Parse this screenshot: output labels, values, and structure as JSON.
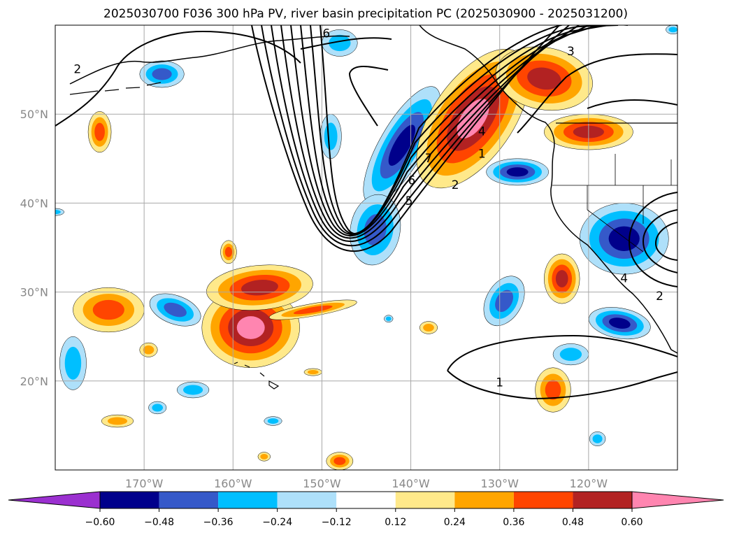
{
  "chart_data": {
    "type": "heatmap",
    "title": "2025030700 F036 300 hPa PV, river basin precipitation PC (2025030900 - 2025031200)",
    "xlabel": "",
    "ylabel": "",
    "projection": "equirectangular map",
    "xlim": [
      -180,
      -110
    ],
    "ylim": [
      10,
      60
    ],
    "grid": true,
    "x_ticks": [
      {
        "value": -170,
        "label": "170°W"
      },
      {
        "value": -160,
        "label": "160°W"
      },
      {
        "value": -150,
        "label": "150°W"
      },
      {
        "value": -140,
        "label": "140°W"
      },
      {
        "value": -130,
        "label": "130°W"
      },
      {
        "value": -120,
        "label": "120°W"
      }
    ],
    "y_ticks": [
      {
        "value": 20,
        "label": "20°N"
      },
      {
        "value": 30,
        "label": "30°N"
      },
      {
        "value": 40,
        "label": "40°N"
      },
      {
        "value": 50,
        "label": "50°N"
      }
    ],
    "colorbar": {
      "orientation": "horizontal",
      "placement": "bottom",
      "extend": "both",
      "levels": [
        -0.6,
        -0.48,
        -0.36,
        -0.24,
        -0.12,
        0.12,
        0.24,
        0.36,
        0.48,
        0.6
      ],
      "tick_labels": [
        "−0.60",
        "−0.48",
        "−0.36",
        "−0.24",
        "−0.12",
        "0.12",
        "0.24",
        "0.36",
        "0.48",
        "0.60"
      ],
      "colors": [
        "#9b30d0",
        "#00008b",
        "#3559c9",
        "#00bfff",
        "#aee0fa",
        "#ffffff",
        "#ffe98a",
        "#ffa500",
        "#ff4500",
        "#b22222",
        "#ff85b0"
      ]
    },
    "contour_labels": [
      {
        "text": "6",
        "lon": -149.5,
        "lat": 59.0
      },
      {
        "text": "3",
        "lon": -122.0,
        "lat": 57.0
      },
      {
        "text": "2",
        "lon": -177.5,
        "lat": 55.0
      },
      {
        "text": "4",
        "lon": -132.0,
        "lat": 48.0
      },
      {
        "text": "1",
        "lon": -132.0,
        "lat": 45.5
      },
      {
        "text": "7",
        "lon": -138.0,
        "lat": 45.0
      },
      {
        "text": "2",
        "lon": -135.0,
        "lat": 42.0
      },
      {
        "text": "5",
        "lon": -140.2,
        "lat": 40.2
      },
      {
        "text": "6",
        "lon": -139.9,
        "lat": 42.5
      },
      {
        "text": "4",
        "lon": -116.0,
        "lat": 31.5
      },
      {
        "text": "2",
        "lon": -112.0,
        "lat": 29.5
      },
      {
        "text": "1",
        "lon": -130.0,
        "lat": 19.8
      }
    ],
    "shaded_regions": [
      {
        "value": -0.3,
        "lon": -148.0,
        "lat": 58.0,
        "rx": 2.0,
        "ry": 1.5,
        "rot": 0
      },
      {
        "value": -0.4,
        "lon": -168.0,
        "lat": 54.5,
        "rx": 2.5,
        "ry": 1.5,
        "rot": 0
      },
      {
        "value": -0.55,
        "lon": -141.0,
        "lat": 46.5,
        "rx": 2.5,
        "ry": 7.5,
        "rot": 30
      },
      {
        "value": -0.45,
        "lon": -144.0,
        "lat": 37.0,
        "rx": 2.8,
        "ry": 4.0,
        "rot": 10
      },
      {
        "value": -0.3,
        "lon": -149.0,
        "lat": 47.5,
        "rx": 1.2,
        "ry": 2.5,
        "rot": 0
      },
      {
        "value": 0.62,
        "lon": -133.0,
        "lat": 49.5,
        "rx": 4.5,
        "ry": 9.0,
        "rot": 35
      },
      {
        "value": 0.5,
        "lon": -125.0,
        "lat": 54.0,
        "rx": 5.5,
        "ry": 3.5,
        "rot": 10
      },
      {
        "value": 0.58,
        "lon": -120.0,
        "lat": 48.0,
        "rx": 5.0,
        "ry": 2.0,
        "rot": 0
      },
      {
        "value": -0.5,
        "lon": -128.0,
        "lat": 43.5,
        "rx": 3.5,
        "ry": 1.5,
        "rot": 0
      },
      {
        "value": -0.55,
        "lon": -116.0,
        "lat": 36.0,
        "rx": 5.0,
        "ry": 4.0,
        "rot": 0
      },
      {
        "value": 0.5,
        "lon": -123.0,
        "lat": 31.5,
        "rx": 2.0,
        "ry": 2.8,
        "rot": 0
      },
      {
        "value": -0.45,
        "lon": -129.5,
        "lat": 29.0,
        "rx": 2.0,
        "ry": 3.0,
        "rot": 30
      },
      {
        "value": -0.5,
        "lon": -116.5,
        "lat": 26.5,
        "rx": 3.5,
        "ry": 1.7,
        "rot": 10
      },
      {
        "value": -0.3,
        "lon": -122.0,
        "lat": 23.0,
        "rx": 2.0,
        "ry": 1.2,
        "rot": 0
      },
      {
        "value": 0.45,
        "lon": -124.0,
        "lat": 19.0,
        "rx": 2.0,
        "ry": 2.5,
        "rot": 0
      },
      {
        "value": -0.3,
        "lon": -119.0,
        "lat": 13.5,
        "rx": 0.9,
        "ry": 0.8,
        "rot": 0
      },
      {
        "value": 0.42,
        "lon": -175.0,
        "lat": 48.0,
        "rx": 1.3,
        "ry": 2.3,
        "rot": 0
      },
      {
        "value": 0.45,
        "lon": -174.0,
        "lat": 28.0,
        "rx": 4.0,
        "ry": 2.5,
        "rot": 0
      },
      {
        "value": 0.62,
        "lon": -158.0,
        "lat": 26.0,
        "rx": 5.5,
        "ry": 4.5,
        "rot": 0
      },
      {
        "value": 0.55,
        "lon": -157.0,
        "lat": 30.5,
        "rx": 6.0,
        "ry": 2.5,
        "rot": -5
      },
      {
        "value": 0.4,
        "lon": -151.0,
        "lat": 28.0,
        "rx": 5.0,
        "ry": 0.7,
        "rot": -10
      },
      {
        "value": 0.4,
        "lon": -160.5,
        "lat": 34.5,
        "rx": 0.9,
        "ry": 1.3,
        "rot": 0
      },
      {
        "value": -0.45,
        "lon": -166.5,
        "lat": 28.0,
        "rx": 3.0,
        "ry": 1.6,
        "rot": 20
      },
      {
        "value": -0.35,
        "lon": -178.0,
        "lat": 22.0,
        "rx": 1.5,
        "ry": 3.0,
        "rot": 0
      },
      {
        "value": -0.3,
        "lon": -164.5,
        "lat": 19.0,
        "rx": 1.8,
        "ry": 0.9,
        "rot": 0
      },
      {
        "value": -0.3,
        "lon": -168.5,
        "lat": 17.0,
        "rx": 1.0,
        "ry": 0.7,
        "rot": 0
      },
      {
        "value": 0.35,
        "lon": -169.5,
        "lat": 23.5,
        "rx": 1.0,
        "ry": 0.8,
        "rot": 0
      },
      {
        "value": 0.35,
        "lon": -173.0,
        "lat": 15.5,
        "rx": 1.8,
        "ry": 0.7,
        "rot": 0
      },
      {
        "value": -0.3,
        "lon": -155.5,
        "lat": 15.5,
        "rx": 1.0,
        "ry": 0.5,
        "rot": 0
      },
      {
        "value": 0.3,
        "lon": -151.0,
        "lat": 21.0,
        "rx": 1.0,
        "ry": 0.4,
        "rot": 0
      },
      {
        "value": 0.3,
        "lon": -156.5,
        "lat": 11.5,
        "rx": 0.7,
        "ry": 0.5,
        "rot": 0
      },
      {
        "value": 0.45,
        "lon": -148.0,
        "lat": 11.0,
        "rx": 1.5,
        "ry": 1.0,
        "rot": 0
      },
      {
        "value": 0.35,
        "lon": -138.0,
        "lat": 26.0,
        "rx": 1.0,
        "ry": 0.7,
        "rot": 0
      },
      {
        "value": -0.25,
        "lon": -142.5,
        "lat": 27.0,
        "rx": 0.5,
        "ry": 0.4,
        "rot": 0
      },
      {
        "value": -0.25,
        "lon": -180.0,
        "lat": 39.0,
        "rx": 1.0,
        "ry": 0.4,
        "rot": 0
      },
      {
        "value": -0.3,
        "lon": -110.5,
        "lat": 59.5,
        "rx": 0.8,
        "ry": 0.5,
        "rot": 0
      }
    ]
  }
}
